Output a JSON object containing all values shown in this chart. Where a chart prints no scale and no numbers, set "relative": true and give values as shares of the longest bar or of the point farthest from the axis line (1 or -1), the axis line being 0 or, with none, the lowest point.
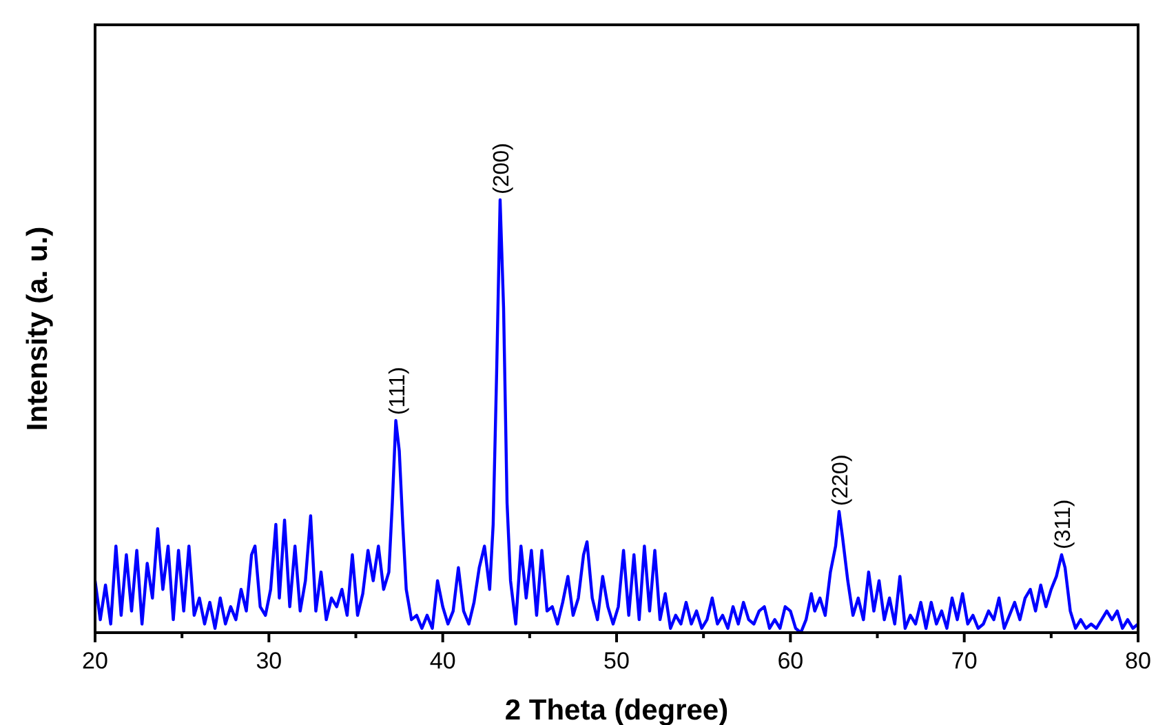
{
  "chart_data": {
    "type": "line",
    "relative": true,
    "xlabel": "2 Theta (degree)",
    "ylabel": "Intensity (a. u.)",
    "xlim": [
      20,
      80
    ],
    "xticks": [
      20,
      {
        "value": 25,
        "label": null
      },
      30,
      {
        "value": 35,
        "label": null
      },
      40,
      {
        "value": 45,
        "label": null
      },
      50,
      {
        "value": 55,
        "label": null
      },
      60,
      {
        "value": 65,
        "label": null
      },
      70,
      {
        "value": 75,
        "label": null
      },
      80
    ],
    "marker": "none",
    "line_style": "solid",
    "grid": false,
    "annotations": [
      {
        "text": "(111)",
        "x": 37.3,
        "y": 0.49
      },
      {
        "text": "(200)",
        "x": 43.3,
        "y": 1.0
      },
      {
        "text": "(220)",
        "x": 62.8,
        "y": 0.28
      },
      {
        "text": "(311)",
        "x": 75.6,
        "y": 0.18
      }
    ],
    "series": [
      {
        "color": "#0000ff",
        "x": [
          20.0,
          20.3,
          20.6,
          20.9,
          21.2,
          21.5,
          21.8,
          22.1,
          22.4,
          22.7,
          23.0,
          23.3,
          23.6,
          23.9,
          24.2,
          24.5,
          24.8,
          25.1,
          25.4,
          25.7,
          26.0,
          26.3,
          26.6,
          26.9,
          27.2,
          27.5,
          27.8,
          28.1,
          28.4,
          28.7,
          29.0,
          29.2,
          29.5,
          29.8,
          30.1,
          30.4,
          30.6,
          30.9,
          31.2,
          31.5,
          31.8,
          32.1,
          32.4,
          32.7,
          33.0,
          33.3,
          33.6,
          33.9,
          34.2,
          34.5,
          34.8,
          35.1,
          35.4,
          35.7,
          36.0,
          36.3,
          36.6,
          36.9,
          37.1,
          37.3,
          37.5,
          37.7,
          37.9,
          38.2,
          38.5,
          38.8,
          39.1,
          39.4,
          39.7,
          40.0,
          40.3,
          40.6,
          40.9,
          41.2,
          41.5,
          41.8,
          42.1,
          42.4,
          42.7,
          42.9,
          43.1,
          43.3,
          43.5,
          43.7,
          43.9,
          44.2,
          44.5,
          44.8,
          45.1,
          45.4,
          45.7,
          46.0,
          46.3,
          46.6,
          46.9,
          47.2,
          47.5,
          47.8,
          48.1,
          48.3,
          48.6,
          48.9,
          49.2,
          49.5,
          49.8,
          50.1,
          50.4,
          50.7,
          51.0,
          51.3,
          51.6,
          51.9,
          52.2,
          52.5,
          52.8,
          53.1,
          53.4,
          53.7,
          54.0,
          54.3,
          54.6,
          54.9,
          55.2,
          55.5,
          55.8,
          56.1,
          56.4,
          56.7,
          57.0,
          57.3,
          57.6,
          57.9,
          58.2,
          58.5,
          58.8,
          59.1,
          59.4,
          59.7,
          60.0,
          60.3,
          60.6,
          60.9,
          61.2,
          61.4,
          61.7,
          62.0,
          62.3,
          62.6,
          62.8,
          63.0,
          63.3,
          63.6,
          63.9,
          64.2,
          64.5,
          64.8,
          65.1,
          65.4,
          65.7,
          66.0,
          66.3,
          66.6,
          66.9,
          67.2,
          67.5,
          67.8,
          68.1,
          68.4,
          68.7,
          69.0,
          69.3,
          69.6,
          69.9,
          70.2,
          70.5,
          70.8,
          71.1,
          71.4,
          71.7,
          72.0,
          72.3,
          72.6,
          72.9,
          73.2,
          73.5,
          73.8,
          74.1,
          74.4,
          74.7,
          75.0,
          75.3,
          75.6,
          75.8,
          76.1,
          76.4,
          76.7,
          77.0,
          77.3,
          77.6,
          77.9,
          78.2,
          78.5,
          78.8,
          79.1,
          79.4,
          79.7,
          80.0
        ],
        "values": [
          0.12,
          0.03,
          0.11,
          0.02,
          0.2,
          0.04,
          0.18,
          0.05,
          0.19,
          0.02,
          0.16,
          0.08,
          0.24,
          0.1,
          0.2,
          0.03,
          0.19,
          0.05,
          0.2,
          0.04,
          0.08,
          0.02,
          0.07,
          0.01,
          0.08,
          0.02,
          0.06,
          0.03,
          0.1,
          0.05,
          0.18,
          0.2,
          0.06,
          0.04,
          0.1,
          0.25,
          0.08,
          0.26,
          0.06,
          0.2,
          0.05,
          0.12,
          0.27,
          0.05,
          0.14,
          0.03,
          0.08,
          0.06,
          0.1,
          0.04,
          0.18,
          0.04,
          0.09,
          0.19,
          0.12,
          0.2,
          0.1,
          0.14,
          0.3,
          0.49,
          0.42,
          0.25,
          0.1,
          0.03,
          0.04,
          0.01,
          0.04,
          0.01,
          0.12,
          0.06,
          0.02,
          0.05,
          0.15,
          0.05,
          0.02,
          0.07,
          0.15,
          0.2,
          0.1,
          0.25,
          0.6,
          1.0,
          0.75,
          0.3,
          0.12,
          0.02,
          0.2,
          0.08,
          0.19,
          0.04,
          0.19,
          0.05,
          0.06,
          0.02,
          0.07,
          0.13,
          0.04,
          0.08,
          0.18,
          0.21,
          0.08,
          0.03,
          0.13,
          0.06,
          0.02,
          0.06,
          0.19,
          0.04,
          0.18,
          0.03,
          0.2,
          0.05,
          0.19,
          0.03,
          0.09,
          0.01,
          0.04,
          0.02,
          0.07,
          0.02,
          0.05,
          0.01,
          0.03,
          0.08,
          0.02,
          0.04,
          0.01,
          0.06,
          0.02,
          0.07,
          0.03,
          0.02,
          0.05,
          0.06,
          0.01,
          0.03,
          0.01,
          0.06,
          0.05,
          0.01,
          0.0,
          0.03,
          0.09,
          0.05,
          0.08,
          0.04,
          0.14,
          0.2,
          0.28,
          0.22,
          0.12,
          0.04,
          0.08,
          0.03,
          0.14,
          0.05,
          0.12,
          0.03,
          0.08,
          0.02,
          0.13,
          0.01,
          0.04,
          0.02,
          0.07,
          0.01,
          0.07,
          0.02,
          0.05,
          0.01,
          0.08,
          0.03,
          0.09,
          0.02,
          0.04,
          0.01,
          0.02,
          0.05,
          0.03,
          0.08,
          0.01,
          0.04,
          0.07,
          0.03,
          0.08,
          0.1,
          0.05,
          0.11,
          0.06,
          0.1,
          0.13,
          0.18,
          0.15,
          0.05,
          0.01,
          0.03,
          0.01,
          0.02,
          0.01,
          0.03,
          0.05,
          0.03,
          0.05,
          0.01,
          0.03,
          0.01,
          0.02
        ]
      }
    ]
  }
}
